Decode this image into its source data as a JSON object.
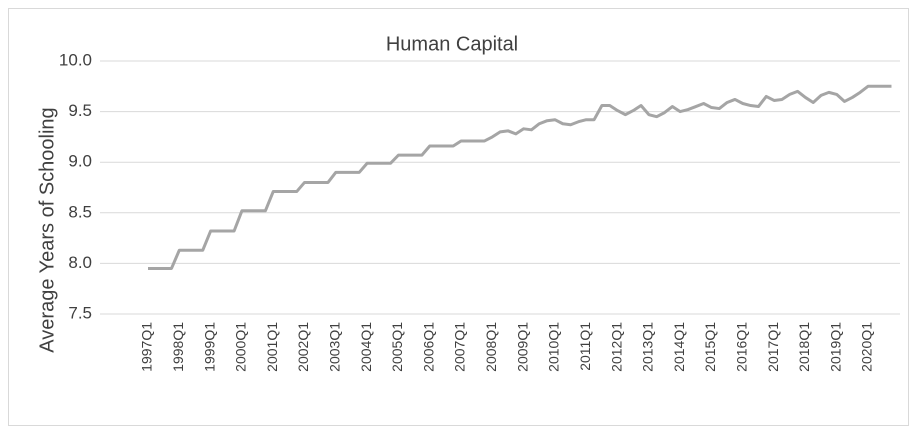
{
  "chart_data": {
    "type": "line",
    "title": "Human Capital",
    "y_label": "Average Years of Schooling",
    "categories": [
      "1997Q1",
      null,
      null,
      null,
      "1998Q1",
      null,
      null,
      null,
      "1999Q1",
      null,
      null,
      null,
      "2000Q1",
      null,
      null,
      null,
      "2001Q1",
      null,
      null,
      null,
      "2002Q1",
      null,
      null,
      null,
      "2003Q1",
      null,
      null,
      null,
      "2004Q1",
      null,
      null,
      null,
      "2005Q1",
      null,
      null,
      null,
      "2006Q1",
      null,
      null,
      null,
      "2007Q1",
      null,
      null,
      null,
      "2008Q1",
      null,
      null,
      null,
      "2009Q1",
      null,
      null,
      null,
      "2010Q1",
      null,
      null,
      null,
      "2011Q1",
      null,
      null,
      null,
      "2012Q1",
      null,
      null,
      null,
      "2013Q1",
      null,
      null,
      null,
      "2014Q1",
      null,
      null,
      null,
      "2015Q1",
      null,
      null,
      null,
      "2016Q1",
      null,
      null,
      null,
      "2017Q1",
      null,
      null,
      null,
      "2018Q1",
      null,
      null,
      null,
      "2019Q1",
      null,
      null,
      null,
      "2020Q1",
      null,
      null,
      null
    ],
    "values": [
      7.95,
      7.95,
      7.95,
      7.95,
      8.13,
      8.13,
      8.13,
      8.13,
      8.32,
      8.32,
      8.32,
      8.32,
      8.52,
      8.52,
      8.52,
      8.52,
      8.71,
      8.71,
      8.71,
      8.71,
      8.8,
      8.8,
      8.8,
      8.8,
      8.9,
      8.9,
      8.9,
      8.9,
      8.99,
      8.99,
      8.99,
      8.99,
      9.07,
      9.07,
      9.07,
      9.07,
      9.16,
      9.16,
      9.16,
      9.16,
      9.21,
      9.21,
      9.21,
      9.21,
      9.25,
      9.3,
      9.31,
      9.28,
      9.33,
      9.32,
      9.38,
      9.41,
      9.42,
      9.38,
      9.37,
      9.4,
      9.42,
      9.42,
      9.56,
      9.56,
      9.51,
      9.47,
      9.51,
      9.56,
      9.47,
      9.45,
      9.49,
      9.55,
      9.5,
      9.52,
      9.55,
      9.58,
      9.54,
      9.53,
      9.59,
      9.62,
      9.58,
      9.56,
      9.55,
      9.65,
      9.61,
      9.62,
      9.67,
      9.7,
      9.64,
      9.59,
      9.66,
      9.69,
      9.67,
      9.6,
      9.64,
      9.69,
      9.75,
      9.75,
      9.75,
      9.75
    ],
    "color": "#a5a5a5",
    "ylim": [
      7.5,
      10
    ],
    "yticks": [
      7.5,
      {
        "value": 8,
        "label": "8.0"
      },
      8.5,
      {
        "value": 9,
        "label": "9.0"
      },
      9.5,
      {
        "value": 10,
        "label": "10.0"
      }
    ],
    "grid": true
  }
}
